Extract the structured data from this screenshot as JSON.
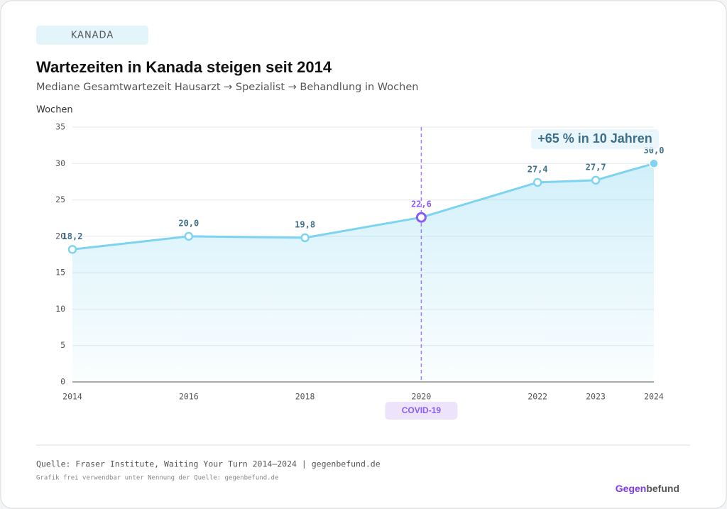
{
  "tag": "KANADA",
  "chart_data": {
    "type": "line",
    "title": "Wartezeiten in Kanada steigen seit 2014",
    "subtitle": "Mediane Gesamtwartezeit Hausarzt → Spezialist → Behandlung in Wochen",
    "y_label": "Wochen",
    "x": [
      2014,
      2016,
      2018,
      2020,
      2022,
      2023,
      2024
    ],
    "values": [
      18.2,
      20.0,
      19.8,
      22.6,
      27.4,
      27.7,
      30.0
    ],
    "value_labels": [
      "18,2",
      "20,0",
      "19,8",
      "22,6",
      "27,4",
      "27,7",
      "30,0"
    ],
    "color": "#7dd3f0",
    "xlim": [
      2014,
      2024
    ],
    "xticks": [
      2014,
      2016,
      2018,
      2020,
      2022,
      2023,
      2024
    ],
    "ylim": [
      0,
      35
    ],
    "yticks": [
      0,
      5,
      10,
      15,
      20,
      25,
      30,
      35
    ],
    "grid": true,
    "area_fill": true,
    "events": [
      {
        "x": 2020,
        "label": "COVID-19",
        "color": "#8b5cf6"
      }
    ],
    "callout": "+65 % in 10 Jahren"
  },
  "source": "Quelle: Fraser Institute, Waiting Your Turn 2014–2024 | gegenbefund.de",
  "note": "Grafik frei verwendbar unter Nennung der Quelle: gegenbefund.de",
  "brand": {
    "part1": "Gegen",
    "part2": "befund"
  }
}
